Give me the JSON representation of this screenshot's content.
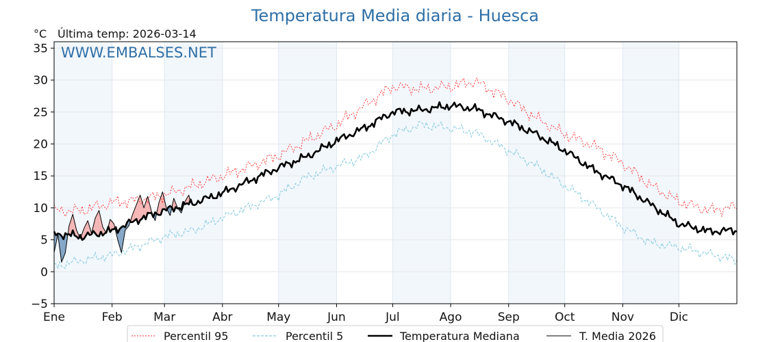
{
  "chart_data": {
    "type": "line",
    "title": "Temperatura Media diaria - Huesca",
    "unit_label": "°C",
    "last_temp_label": "Última temp: 2026-03-14",
    "watermark": "WWW.EMBALSES.NET",
    "ylim": [
      -5,
      36
    ],
    "yticks": [
      35,
      30,
      25,
      20,
      15,
      10,
      5,
      0,
      -5
    ],
    "ytick_labels": [
      "35",
      "30",
      "25",
      "20",
      "15",
      "10",
      "5",
      "0",
      "−5"
    ],
    "months": [
      "Ene",
      "Feb",
      "Mar",
      "Abr",
      "May",
      "Jun",
      "Jul",
      "Ago",
      "Sep",
      "Oct",
      "Nov",
      "Dic"
    ],
    "month_start_day": [
      0,
      31,
      59,
      90,
      120,
      151,
      181,
      212,
      243,
      273,
      304,
      334
    ],
    "xlim": [
      0,
      365
    ],
    "series": [
      {
        "name": "Percentil 95",
        "color": "#ff2020",
        "dash": "2,2",
        "width": 0.9,
        "knots": [
          [
            0,
            9.5
          ],
          [
            15,
            9.6
          ],
          [
            31,
            10.8
          ],
          [
            45,
            11.2
          ],
          [
            59,
            12.0
          ],
          [
            75,
            13.5
          ],
          [
            90,
            15.0
          ],
          [
            105,
            16.5
          ],
          [
            120,
            18.2
          ],
          [
            135,
            20.5
          ],
          [
            151,
            23.0
          ],
          [
            166,
            26.0
          ],
          [
            181,
            29.0
          ],
          [
            196,
            28.6
          ],
          [
            212,
            29.0
          ],
          [
            225,
            29.8
          ],
          [
            243,
            27.0
          ],
          [
            258,
            24.0
          ],
          [
            273,
            21.5
          ],
          [
            288,
            19.8
          ],
          [
            304,
            17.0
          ],
          [
            319,
            13.5
          ],
          [
            334,
            11.0
          ],
          [
            350,
            9.6
          ],
          [
            365,
            10.2
          ]
        ]
      },
      {
        "name": "Percentil 5",
        "color": "#80c8dc",
        "dash": "4,2",
        "width": 1.0,
        "knots": [
          [
            0,
            0.8
          ],
          [
            15,
            1.8
          ],
          [
            31,
            2.6
          ],
          [
            45,
            4.0
          ],
          [
            59,
            5.5
          ],
          [
            75,
            6.5
          ],
          [
            90,
            8.5
          ],
          [
            105,
            10.2
          ],
          [
            120,
            12.0
          ],
          [
            135,
            14.8
          ],
          [
            151,
            16.5
          ],
          [
            166,
            18.0
          ],
          [
            181,
            21.5
          ],
          [
            196,
            23.0
          ],
          [
            212,
            22.5
          ],
          [
            225,
            21.8
          ],
          [
            243,
            19.0
          ],
          [
            258,
            16.5
          ],
          [
            273,
            13.5
          ],
          [
            288,
            10.5
          ],
          [
            304,
            7.0
          ],
          [
            319,
            4.5
          ],
          [
            334,
            3.8
          ],
          [
            350,
            2.8
          ],
          [
            365,
            1.8
          ]
        ]
      },
      {
        "name": "Temperatura Mediana",
        "color": "#000000",
        "dash": "",
        "width": 2.6,
        "knots": [
          [
            0,
            6.0
          ],
          [
            15,
            5.5
          ],
          [
            31,
            6.4
          ],
          [
            45,
            8.2
          ],
          [
            59,
            9.6
          ],
          [
            75,
            10.8
          ],
          [
            90,
            12.3
          ],
          [
            105,
            14.3
          ],
          [
            120,
            16.3
          ],
          [
            135,
            18.0
          ],
          [
            151,
            20.5
          ],
          [
            166,
            22.5
          ],
          [
            181,
            25.0
          ],
          [
            196,
            25.3
          ],
          [
            212,
            26.0
          ],
          [
            225,
            25.5
          ],
          [
            243,
            23.5
          ],
          [
            258,
            21.5
          ],
          [
            273,
            19.0
          ],
          [
            288,
            16.0
          ],
          [
            304,
            13.5
          ],
          [
            319,
            10.5
          ],
          [
            334,
            7.5
          ],
          [
            350,
            6.3
          ],
          [
            365,
            6.5
          ]
        ]
      },
      {
        "name": "T. Media 2026",
        "color": "#000000",
        "dash": "",
        "width": 1.0,
        "knots": [
          [
            0,
            3.0
          ],
          [
            2,
            5.8
          ],
          [
            4,
            1.5
          ],
          [
            6,
            3.0
          ],
          [
            8,
            7.2
          ],
          [
            10,
            9.0
          ],
          [
            12,
            6.5
          ],
          [
            14,
            5.2
          ],
          [
            16,
            6.8
          ],
          [
            18,
            8.0
          ],
          [
            20,
            6.0
          ],
          [
            22,
            8.4
          ],
          [
            24,
            9.6
          ],
          [
            26,
            7.0
          ],
          [
            28,
            6.0
          ],
          [
            30,
            8.2
          ],
          [
            32,
            7.5
          ],
          [
            34,
            5.0
          ],
          [
            36,
            3.0
          ],
          [
            38,
            6.5
          ],
          [
            40,
            7.2
          ],
          [
            42,
            9.0
          ],
          [
            44,
            10.5
          ],
          [
            46,
            12.0
          ],
          [
            48,
            10.0
          ],
          [
            50,
            11.8
          ],
          [
            52,
            9.5
          ],
          [
            54,
            8.0
          ],
          [
            56,
            10.8
          ],
          [
            58,
            12.5
          ],
          [
            60,
            10.0
          ],
          [
            62,
            8.8
          ],
          [
            64,
            11.5
          ],
          [
            66,
            10.0
          ],
          [
            68,
            9.2
          ],
          [
            70,
            11.0
          ],
          [
            72,
            12.0
          ],
          [
            73,
            10.8
          ]
        ]
      }
    ]
  }
}
